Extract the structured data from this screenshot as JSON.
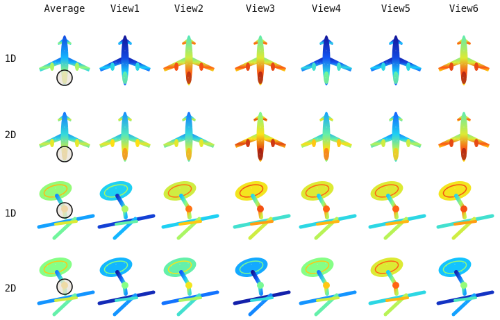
{
  "columns": [
    "Average",
    "View1",
    "View2",
    "View3",
    "View4",
    "View5",
    "View6"
  ],
  "rows": [
    {
      "label": "1D",
      "shape": "airplane"
    },
    {
      "label": "2D",
      "shape": "airplane"
    },
    {
      "label": "1D",
      "shape": "lamp"
    },
    {
      "label": "2D",
      "shape": "lamp"
    }
  ],
  "colormap": [
    "#00008f",
    "#0050ff",
    "#00c8ff",
    "#7cff7c",
    "#ffe000",
    "#ff4a00",
    "#8f0000"
  ],
  "highlight": {
    "column": "Average",
    "marker": "circle",
    "color": "#111111"
  },
  "cell_heat": [
    [
      0.3,
      0.12,
      0.6,
      0.62,
      0.15,
      0.12,
      0.62
    ],
    [
      0.38,
      0.42,
      0.38,
      0.66,
      0.45,
      0.35,
      0.62
    ],
    [
      0.42,
      0.25,
      0.5,
      0.55,
      0.52,
      0.52,
      0.55
    ],
    [
      0.4,
      0.2,
      0.35,
      0.18,
      0.4,
      0.52,
      0.22
    ]
  ]
}
